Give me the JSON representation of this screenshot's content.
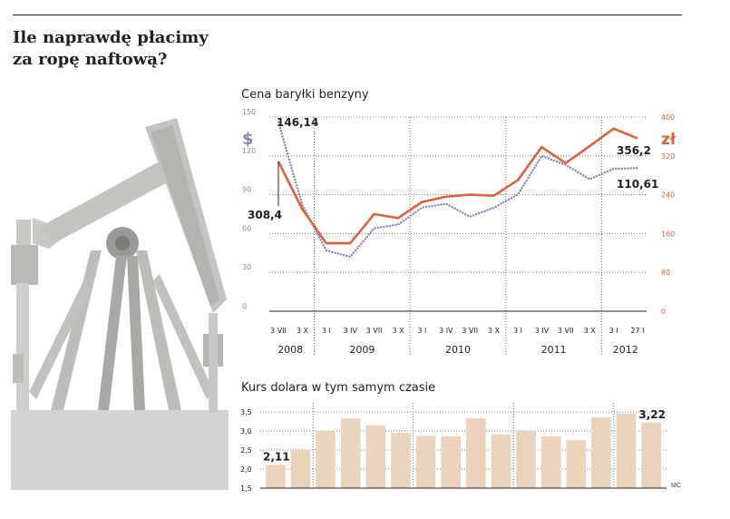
{
  "header": {
    "title_line1": "Ile naprawdę płacimy",
    "title_line2": "za ropę naftową?"
  },
  "chart_data": [
    {
      "type": "line",
      "title": "Cena baryłki benzyny",
      "left_axis": {
        "unit_label": "$",
        "ticks": [
          "150",
          "120",
          "90",
          "60",
          "30",
          "0"
        ],
        "ylim": [
          0,
          150
        ],
        "color": "#8b84b8"
      },
      "right_axis": {
        "unit_label": "zł",
        "ticks": [
          "400",
          "320",
          "240",
          "160",
          "80",
          "0"
        ],
        "ylim": [
          0,
          400
        ],
        "color": "#e05f3c"
      },
      "x_labels": [
        "3 VII",
        "3 X",
        "3 I",
        "3 IV",
        "3 VII",
        "3 X",
        "3 I",
        "3 IV",
        "3 VII",
        "3 X",
        "3 I",
        "3 IV",
        "3 VII",
        "3 X",
        "3 I",
        "27 I"
      ],
      "year_labels": [
        "2008",
        "2009",
        "2010",
        "2011",
        "2012"
      ],
      "series": [
        {
          "name": "USD",
          "axis": "left",
          "style": "dotted",
          "color": "#8b84b8",
          "values": [
            146.14,
            82,
            47,
            42,
            64,
            67,
            80,
            83,
            73,
            80,
            90,
            120,
            113,
            102,
            110,
            110.61
          ]
        },
        {
          "name": "PLN",
          "axis": "right",
          "style": "solid",
          "color": "#e05f3c",
          "values": [
            308.4,
            210,
            140,
            140,
            200,
            192,
            225,
            236,
            240,
            238,
            270,
            338,
            305,
            340,
            376,
            356.2
          ]
        }
      ],
      "annotations": {
        "usd_start": "146,14",
        "pln_start": "308,4",
        "pln_end": "356,2",
        "usd_end": "110,61"
      }
    },
    {
      "type": "bar",
      "title": "Kurs dolara w tym samym czasie",
      "y_ticks": [
        "3,5",
        "3,0",
        "2,5",
        "2,0",
        "1,5"
      ],
      "ylim": [
        1.5,
        3.5
      ],
      "values": [
        2.11,
        2.5,
        3.0,
        3.33,
        3.15,
        2.95,
        2.87,
        2.86,
        3.33,
        2.91,
        3.0,
        2.86,
        2.76,
        3.36,
        3.46,
        3.22
      ],
      "bar_colors": [
        "#ead2bd",
        "#ead2bd",
        "#ead2bd",
        "#ead2bd",
        "#ead2bd",
        "#ead2bd",
        "#ead2bd",
        "#ead2bd",
        "#ead2bd",
        "#ead2bd",
        "#ead2bd",
        "#ead2bd",
        "#ead2bd",
        "#ead2bd",
        "#ead2bd",
        "#ead2bd"
      ],
      "annotations": {
        "first": "2,11",
        "last": "3,22"
      }
    }
  ],
  "credit": "MC"
}
